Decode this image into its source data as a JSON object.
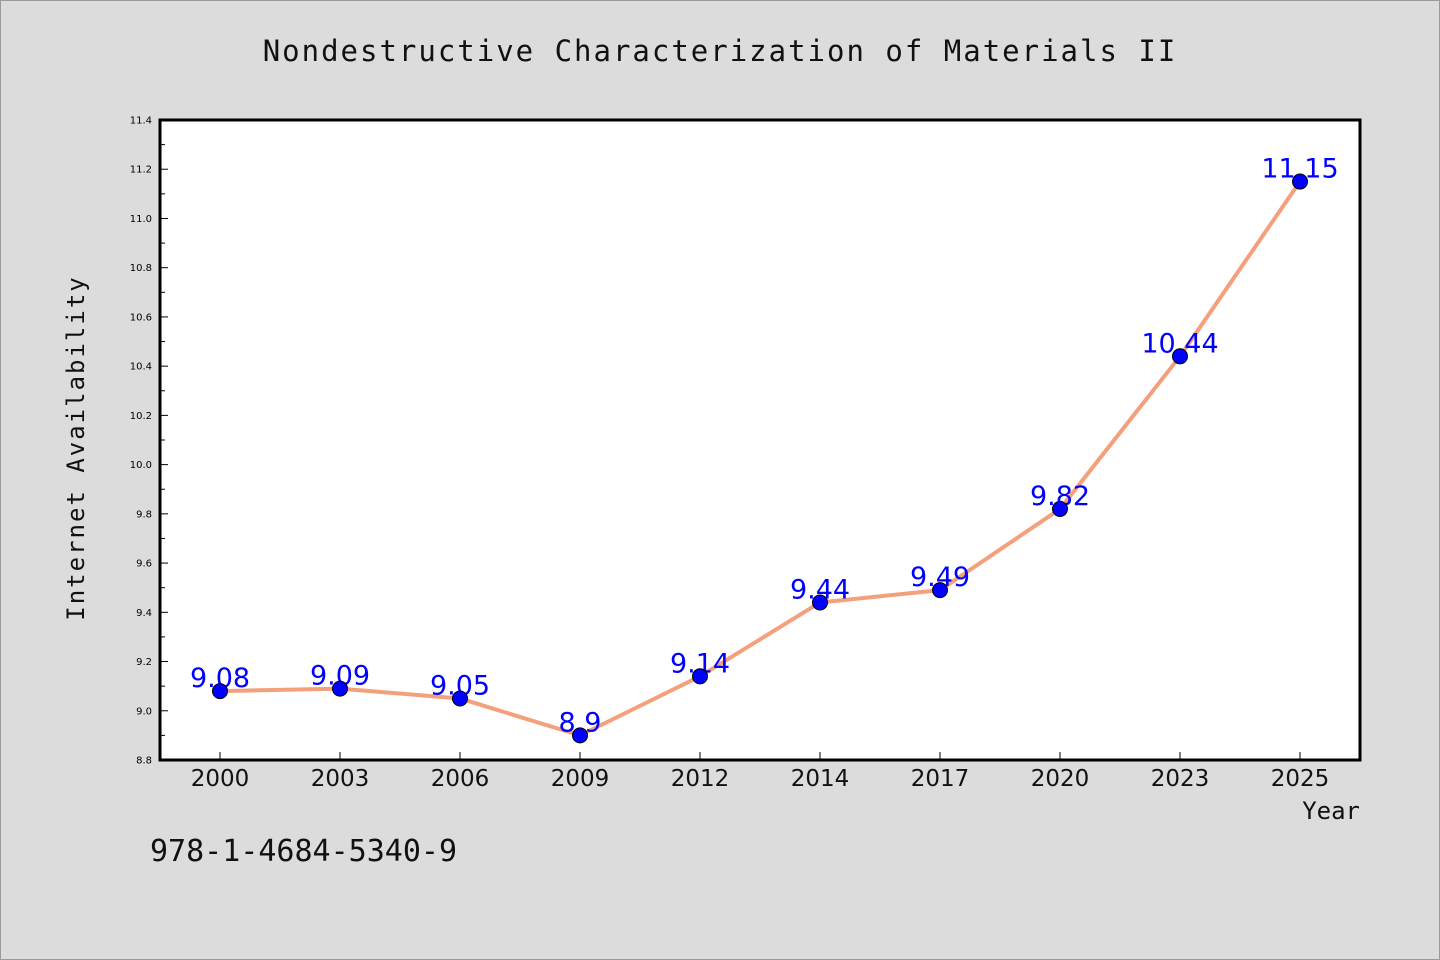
{
  "page": {
    "title": "Nondestructive Characterization of Materials II",
    "isbn": "978-1-4684-5340-9"
  },
  "chart_data": {
    "type": "line",
    "title": "Nondestructive Characterization of Materials II",
    "xlabel": "Year",
    "ylabel": "Internet Availability",
    "categories": [
      "2000",
      "2003",
      "2006",
      "2009",
      "2012",
      "2014",
      "2017",
      "2020",
      "2023",
      "2025"
    ],
    "series": [
      {
        "values": [
          9.08,
          9.09,
          9.05,
          8.9,
          9.14,
          9.44,
          9.49,
          9.82,
          10.44,
          11.15
        ],
        "labels": [
          "9.08",
          "9.09",
          "9.05",
          "8.9",
          "9.14",
          "9.44",
          "9.49",
          "9.82",
          "10.44",
          "11.15"
        ]
      }
    ],
    "ylim": [
      8.8,
      11.4
    ],
    "yticks": [
      "8.8",
      "9.0",
      "9.2",
      "9.4",
      "9.6",
      "9.8",
      "10.0",
      "10.2",
      "10.4",
      "10.6",
      "10.8",
      "11.0",
      "11.2",
      "11.4"
    ],
    "grid": false,
    "legend": "none",
    "colors": {
      "line": "#f4a07c",
      "marker": "#0000ff",
      "data_label": "#0000ff",
      "background": "#dcdcdc",
      "plot_background": "#ffffff"
    }
  }
}
